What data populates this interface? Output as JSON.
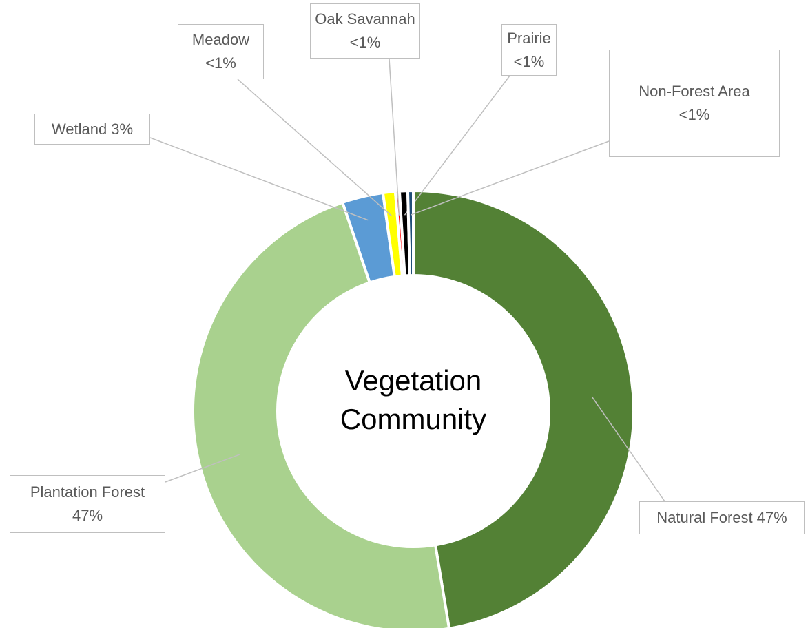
{
  "chart_data": {
    "type": "pie",
    "title": "Vegetation Community",
    "categories": [
      "Natural Forest",
      "Plantation Forest",
      "Wetland",
      "Meadow",
      "Oak Savannah",
      "Prairie",
      "Non-Forest Area"
    ],
    "values": [
      47.4,
      47.4,
      3,
      0.9,
      0.3,
      0.6,
      0.4
    ],
    "value_labels": [
      "47%",
      "47%",
      "3%",
      "<1%",
      "<1%",
      "<1%",
      "<1%"
    ],
    "colors": [
      "#538135",
      "#a9d18e",
      "#5b9bd5",
      "#ffff00",
      "#ff0000",
      "#000000",
      "#1f4e79"
    ]
  }
}
